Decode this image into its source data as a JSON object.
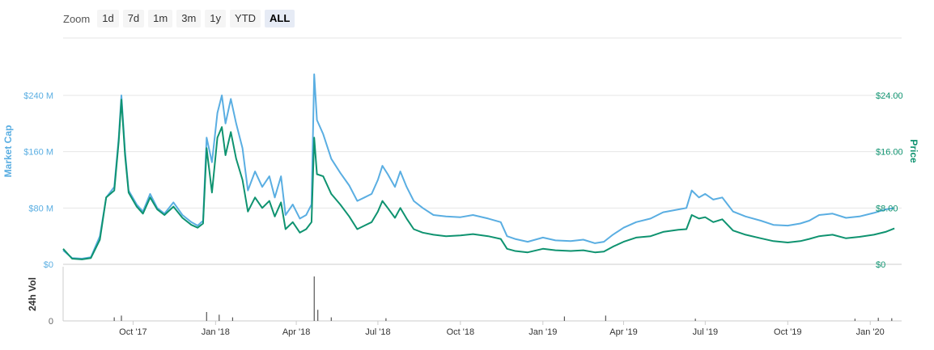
{
  "zoom": {
    "label": "Zoom",
    "buttons": [
      "1d",
      "7d",
      "1m",
      "3m",
      "1y",
      "YTD",
      "ALL"
    ],
    "active": "ALL"
  },
  "colors": {
    "market_cap": "#5aaee2",
    "price": "#0f9370",
    "volume": "#555555",
    "grid": "#e6e6e6",
    "axis": "#cccccc"
  },
  "chart_data": {
    "type": "line",
    "title": "",
    "x_tick_labels": [
      "Oct '17",
      "Jan '18",
      "Apr '18",
      "Jul '18",
      "Oct '18",
      "Jan '19",
      "Apr '19",
      "Jul '19",
      "Oct '19",
      "Jan '20"
    ],
    "y_left": {
      "label": "Market Cap",
      "ticks": [
        "$0",
        "$80 M",
        "$160 M",
        "$240 M"
      ],
      "range": [
        0,
        240
      ]
    },
    "y_right": {
      "label": "Price",
      "ticks": [
        "$0",
        "$8.00",
        "$16.00",
        "$24.00"
      ],
      "range": [
        0,
        24
      ]
    },
    "volume_axis": {
      "label": "24h Vol",
      "ticks": [
        "0"
      ]
    },
    "series": [
      {
        "name": "Market Cap",
        "unit": "M USD",
        "points": [
          [
            "2017-07-15",
            20
          ],
          [
            "2017-07-25",
            9
          ],
          [
            "2017-08-05",
            8
          ],
          [
            "2017-08-15",
            10
          ],
          [
            "2017-08-25",
            40
          ],
          [
            "2017-09-01",
            95
          ],
          [
            "2017-09-10",
            110
          ],
          [
            "2017-09-15",
            180
          ],
          [
            "2017-09-18",
            240
          ],
          [
            "2017-09-22",
            160
          ],
          [
            "2017-09-26",
            105
          ],
          [
            "2017-10-05",
            85
          ],
          [
            "2017-10-12",
            75
          ],
          [
            "2017-10-20",
            100
          ],
          [
            "2017-10-28",
            80
          ],
          [
            "2017-11-05",
            72
          ],
          [
            "2017-11-15",
            88
          ],
          [
            "2017-11-25",
            70
          ],
          [
            "2017-12-05",
            60
          ],
          [
            "2017-12-12",
            55
          ],
          [
            "2017-12-18",
            62
          ],
          [
            "2017-12-22",
            180
          ],
          [
            "2017-12-28",
            145
          ],
          [
            "2018-01-03",
            215
          ],
          [
            "2018-01-08",
            240
          ],
          [
            "2018-01-12",
            200
          ],
          [
            "2018-01-18",
            235
          ],
          [
            "2018-01-24",
            200
          ],
          [
            "2018-01-31",
            165
          ],
          [
            "2018-02-06",
            105
          ],
          [
            "2018-02-14",
            132
          ],
          [
            "2018-02-22",
            110
          ],
          [
            "2018-03-02",
            125
          ],
          [
            "2018-03-08",
            95
          ],
          [
            "2018-03-15",
            125
          ],
          [
            "2018-03-20",
            70
          ],
          [
            "2018-03-28",
            85
          ],
          [
            "2018-04-05",
            65
          ],
          [
            "2018-04-12",
            70
          ],
          [
            "2018-04-18",
            85
          ],
          [
            "2018-04-21",
            270
          ],
          [
            "2018-04-24",
            205
          ],
          [
            "2018-05-01",
            185
          ],
          [
            "2018-05-10",
            150
          ],
          [
            "2018-05-20",
            130
          ],
          [
            "2018-05-30",
            112
          ],
          [
            "2018-06-08",
            90
          ],
          [
            "2018-06-16",
            95
          ],
          [
            "2018-06-24",
            100
          ],
          [
            "2018-07-01",
            120
          ],
          [
            "2018-07-06",
            140
          ],
          [
            "2018-07-12",
            128
          ],
          [
            "2018-07-20",
            110
          ],
          [
            "2018-07-26",
            132
          ],
          [
            "2018-08-02",
            110
          ],
          [
            "2018-08-10",
            90
          ],
          [
            "2018-08-20",
            80
          ],
          [
            "2018-09-01",
            70
          ],
          [
            "2018-09-15",
            68
          ],
          [
            "2018-10-01",
            67
          ],
          [
            "2018-10-15",
            70
          ],
          [
            "2018-11-01",
            65
          ],
          [
            "2018-11-15",
            60
          ],
          [
            "2018-11-22",
            40
          ],
          [
            "2018-12-01",
            36
          ],
          [
            "2018-12-15",
            32
          ],
          [
            "2019-01-01",
            38
          ],
          [
            "2019-01-15",
            34
          ],
          [
            "2019-02-01",
            33
          ],
          [
            "2019-02-15",
            35
          ],
          [
            "2019-02-28",
            30
          ],
          [
            "2019-03-10",
            32
          ],
          [
            "2019-03-20",
            42
          ],
          [
            "2019-04-01",
            52
          ],
          [
            "2019-04-15",
            60
          ],
          [
            "2019-05-01",
            65
          ],
          [
            "2019-05-15",
            74
          ],
          [
            "2019-06-01",
            78
          ],
          [
            "2019-06-10",
            80
          ],
          [
            "2019-06-16",
            105
          ],
          [
            "2019-06-24",
            95
          ],
          [
            "2019-07-01",
            100
          ],
          [
            "2019-07-10",
            92
          ],
          [
            "2019-07-20",
            95
          ],
          [
            "2019-08-01",
            75
          ],
          [
            "2019-08-15",
            68
          ],
          [
            "2019-09-01",
            62
          ],
          [
            "2019-09-15",
            56
          ],
          [
            "2019-10-01",
            55
          ],
          [
            "2019-10-15",
            58
          ],
          [
            "2019-10-25",
            62
          ],
          [
            "2019-11-05",
            70
          ],
          [
            "2019-11-20",
            72
          ],
          [
            "2019-12-05",
            66
          ],
          [
            "2019-12-20",
            68
          ],
          [
            "2020-01-05",
            73
          ],
          [
            "2020-01-18",
            78
          ],
          [
            "2020-01-28",
            80
          ]
        ]
      },
      {
        "name": "Price",
        "unit": "USD",
        "points": [
          [
            "2017-07-15",
            2.2
          ],
          [
            "2017-07-25",
            0.8
          ],
          [
            "2017-08-05",
            0.7
          ],
          [
            "2017-08-15",
            0.9
          ],
          [
            "2017-08-25",
            3.5
          ],
          [
            "2017-09-01",
            9.5
          ],
          [
            "2017-09-10",
            10.5
          ],
          [
            "2017-09-15",
            17.5
          ],
          [
            "2017-09-18",
            23.4
          ],
          [
            "2017-09-22",
            15.5
          ],
          [
            "2017-09-26",
            10.2
          ],
          [
            "2017-10-05",
            8.2
          ],
          [
            "2017-10-12",
            7.2
          ],
          [
            "2017-10-20",
            9.5
          ],
          [
            "2017-10-28",
            7.8
          ],
          [
            "2017-11-05",
            7.0
          ],
          [
            "2017-11-15",
            8.2
          ],
          [
            "2017-11-25",
            6.6
          ],
          [
            "2017-12-05",
            5.6
          ],
          [
            "2017-12-12",
            5.2
          ],
          [
            "2017-12-18",
            5.8
          ],
          [
            "2017-12-22",
            16.5
          ],
          [
            "2017-12-28",
            10.2
          ],
          [
            "2018-01-03",
            18.0
          ],
          [
            "2018-01-08",
            19.5
          ],
          [
            "2018-01-12",
            15.5
          ],
          [
            "2018-01-18",
            18.8
          ],
          [
            "2018-01-24",
            15.0
          ],
          [
            "2018-01-31",
            12.0
          ],
          [
            "2018-02-06",
            7.5
          ],
          [
            "2018-02-14",
            9.5
          ],
          [
            "2018-02-22",
            8.0
          ],
          [
            "2018-03-02",
            9.0
          ],
          [
            "2018-03-08",
            6.8
          ],
          [
            "2018-03-15",
            8.8
          ],
          [
            "2018-03-20",
            5.0
          ],
          [
            "2018-03-28",
            6.0
          ],
          [
            "2018-04-05",
            4.5
          ],
          [
            "2018-04-12",
            5.0
          ],
          [
            "2018-04-18",
            6.0
          ],
          [
            "2018-04-21",
            18.0
          ],
          [
            "2018-04-24",
            12.8
          ],
          [
            "2018-05-01",
            12.5
          ],
          [
            "2018-05-10",
            10.0
          ],
          [
            "2018-05-20",
            8.5
          ],
          [
            "2018-05-30",
            6.8
          ],
          [
            "2018-06-08",
            5.0
          ],
          [
            "2018-06-16",
            5.5
          ],
          [
            "2018-06-24",
            6.0
          ],
          [
            "2018-07-01",
            7.5
          ],
          [
            "2018-07-06",
            9.0
          ],
          [
            "2018-07-12",
            8.0
          ],
          [
            "2018-07-20",
            6.6
          ],
          [
            "2018-07-26",
            8.0
          ],
          [
            "2018-08-02",
            6.5
          ],
          [
            "2018-08-10",
            5.0
          ],
          [
            "2018-08-20",
            4.5
          ],
          [
            "2018-09-01",
            4.2
          ],
          [
            "2018-09-15",
            4.0
          ],
          [
            "2018-10-01",
            4.1
          ],
          [
            "2018-10-15",
            4.3
          ],
          [
            "2018-11-01",
            4.0
          ],
          [
            "2018-11-15",
            3.6
          ],
          [
            "2018-11-22",
            2.2
          ],
          [
            "2018-12-01",
            1.9
          ],
          [
            "2018-12-15",
            1.7
          ],
          [
            "2019-01-01",
            2.2
          ],
          [
            "2019-01-15",
            2.0
          ],
          [
            "2019-02-01",
            1.9
          ],
          [
            "2019-02-15",
            2.0
          ],
          [
            "2019-02-28",
            1.7
          ],
          [
            "2019-03-10",
            1.8
          ],
          [
            "2019-03-20",
            2.5
          ],
          [
            "2019-04-01",
            3.2
          ],
          [
            "2019-04-15",
            3.8
          ],
          [
            "2019-05-01",
            4.0
          ],
          [
            "2019-05-15",
            4.6
          ],
          [
            "2019-06-01",
            4.9
          ],
          [
            "2019-06-10",
            5.0
          ],
          [
            "2019-06-16",
            7.0
          ],
          [
            "2019-06-24",
            6.5
          ],
          [
            "2019-07-01",
            6.7
          ],
          [
            "2019-07-10",
            6.0
          ],
          [
            "2019-07-20",
            6.4
          ],
          [
            "2019-08-01",
            4.8
          ],
          [
            "2019-08-15",
            4.2
          ],
          [
            "2019-09-01",
            3.7
          ],
          [
            "2019-09-15",
            3.3
          ],
          [
            "2019-10-01",
            3.1
          ],
          [
            "2019-10-15",
            3.3
          ],
          [
            "2019-10-25",
            3.6
          ],
          [
            "2019-11-05",
            4.0
          ],
          [
            "2019-11-20",
            4.2
          ],
          [
            "2019-12-05",
            3.7
          ],
          [
            "2019-12-20",
            3.9
          ],
          [
            "2020-01-05",
            4.2
          ],
          [
            "2020-01-18",
            4.6
          ],
          [
            "2020-01-28",
            5.1
          ]
        ]
      },
      {
        "name": "24h Vol",
        "unit": "relative",
        "points": [
          [
            "2017-09-10",
            0.08
          ],
          [
            "2017-09-18",
            0.12
          ],
          [
            "2017-12-22",
            0.2
          ],
          [
            "2018-01-05",
            0.14
          ],
          [
            "2018-01-20",
            0.08
          ],
          [
            "2018-04-21",
            1.0
          ],
          [
            "2018-04-25",
            0.25
          ],
          [
            "2018-05-10",
            0.08
          ],
          [
            "2018-07-10",
            0.06
          ],
          [
            "2019-01-25",
            0.1
          ],
          [
            "2019-03-12",
            0.12
          ],
          [
            "2019-06-20",
            0.05
          ],
          [
            "2019-12-15",
            0.05
          ],
          [
            "2020-01-10",
            0.07
          ],
          [
            "2020-01-25",
            0.06
          ]
        ]
      }
    ],
    "grid": true
  }
}
